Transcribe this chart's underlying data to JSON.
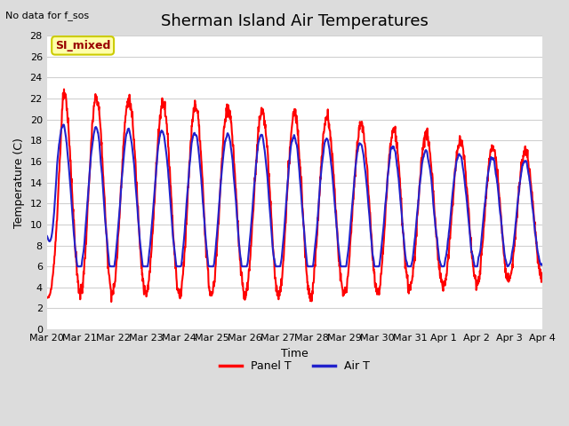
{
  "title": "Sherman Island Air Temperatures",
  "subtitle": "No data for f_sos",
  "xlabel": "Time",
  "ylabel": "Temperature (C)",
  "ylim": [
    0,
    28
  ],
  "yticks": [
    0,
    2,
    4,
    6,
    8,
    10,
    12,
    14,
    16,
    18,
    20,
    22,
    24,
    26,
    28
  ],
  "xtick_labels": [
    "Mar 20",
    "Mar 21",
    "Mar 22",
    "Mar 23",
    "Mar 24",
    "Mar 25",
    "Mar 26",
    "Mar 27",
    "Mar 28",
    "Mar 29",
    "Mar 30",
    "Mar 31",
    "Apr 1",
    "Apr 2",
    "Apr 3",
    "Apr 4"
  ],
  "panel_t_color": "#FF0000",
  "air_t_color": "#2222CC",
  "background_color": "#DCDCDC",
  "plot_bg_color": "#FFFFFF",
  "grid_color": "#D0D0D0",
  "legend_box_facecolor": "#FFFFAA",
  "legend_box_edgecolor": "#CCCC00",
  "annotation_label": "SI_mixed",
  "annotation_color": "#990000",
  "title_fontsize": 13,
  "axis_label_fontsize": 9,
  "tick_fontsize": 8,
  "legend_fontsize": 9,
  "line_width": 1.5
}
